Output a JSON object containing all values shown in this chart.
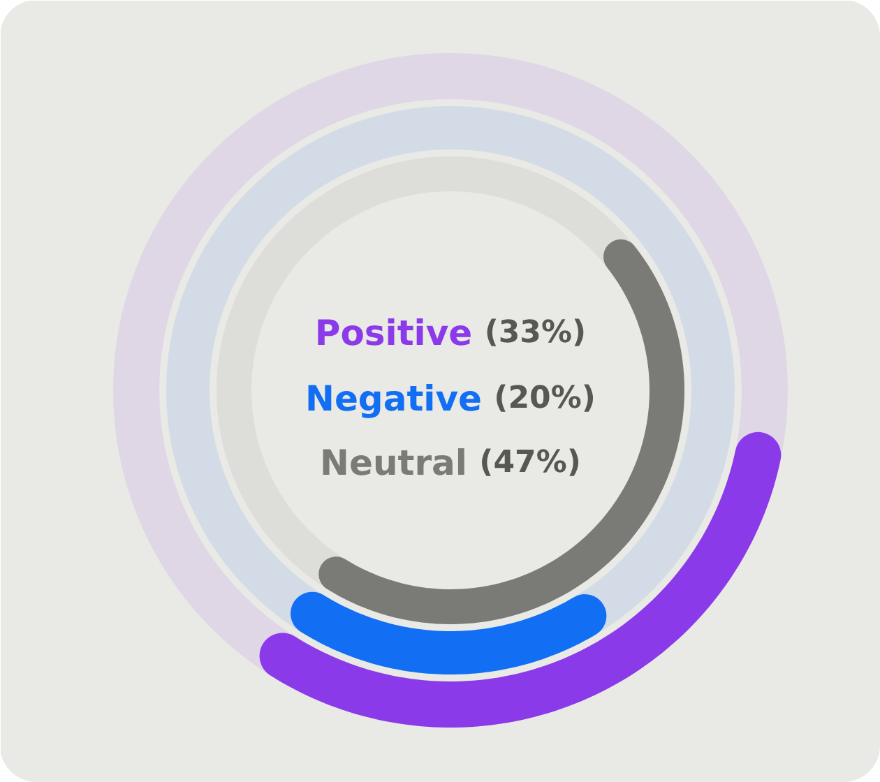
{
  "chart_data": {
    "type": "other",
    "categories": [
      "Positive",
      "Negative",
      "Neutral"
    ],
    "values": [
      33,
      20,
      47
    ],
    "colors": [
      "#8a3ae8",
      "#126ff4",
      "#7a7a76"
    ],
    "value_labels": [
      "(33%)",
      "(20%)",
      "(47%)"
    ]
  }
}
